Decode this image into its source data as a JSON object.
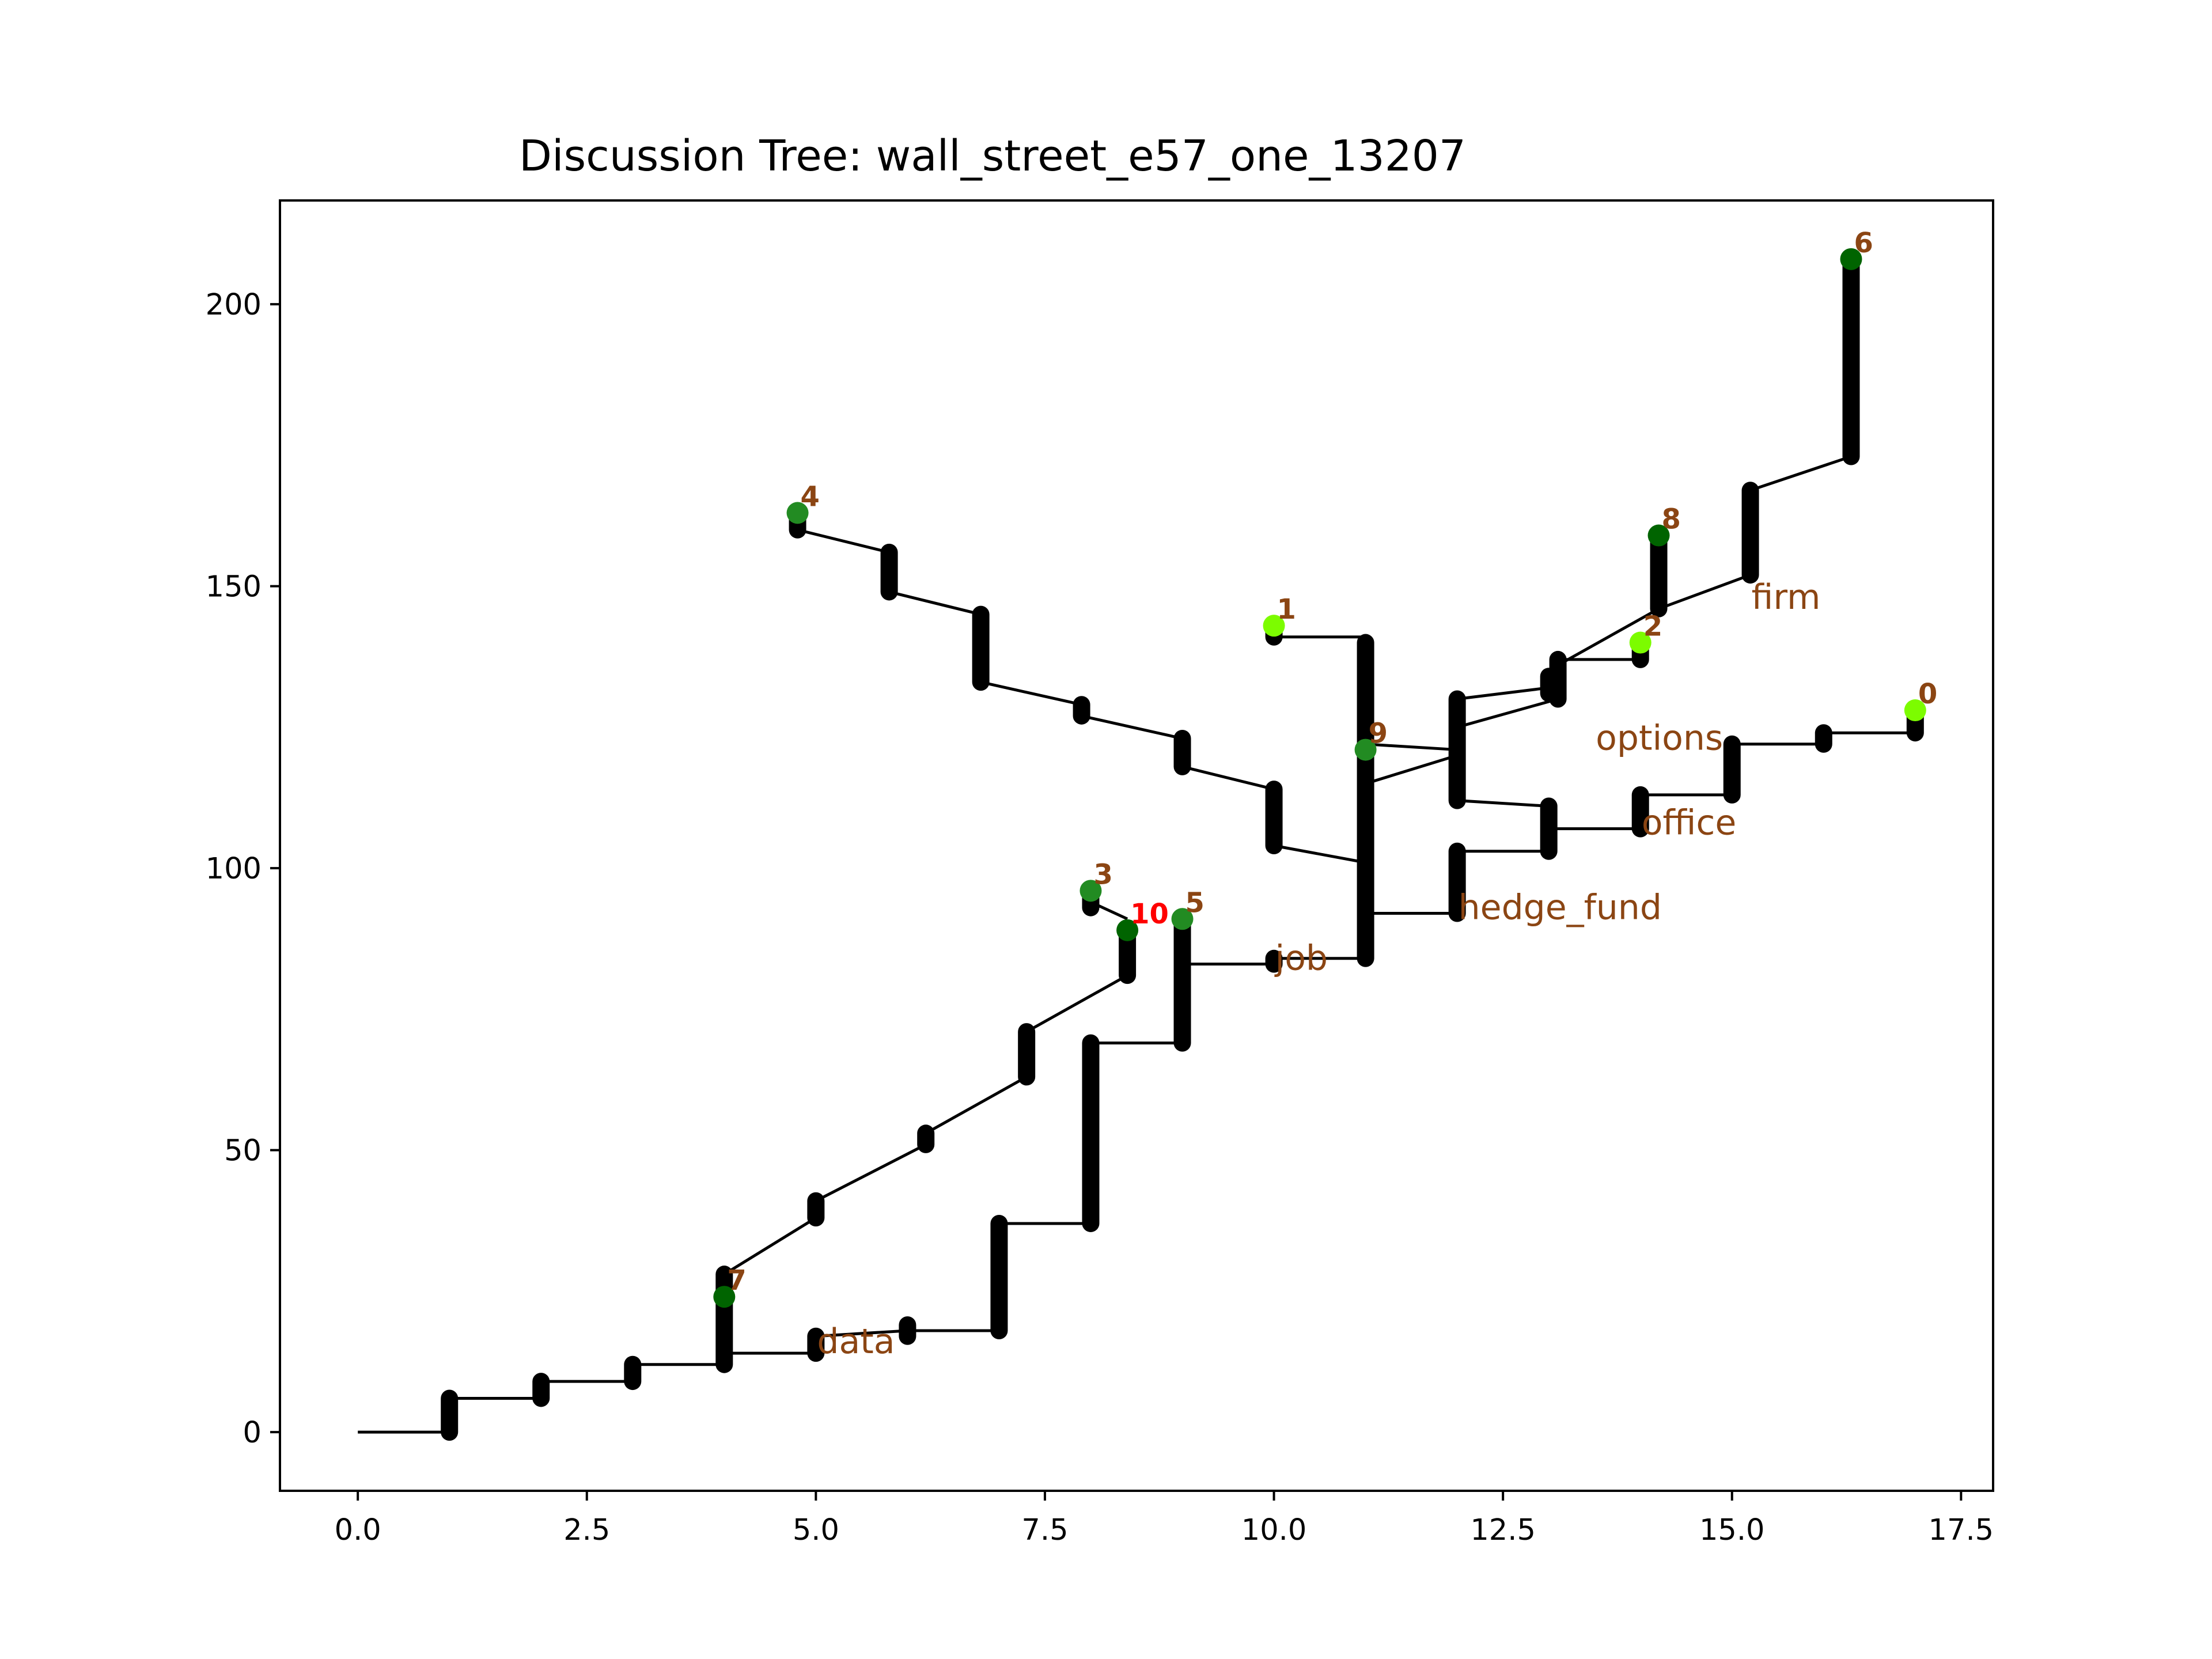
{
  "chart_data": {
    "type": "line",
    "title": "Discussion Tree: wall_street_e57_one_13207",
    "xlabel": "",
    "ylabel": "",
    "xlim": [
      -0.85,
      17.85
    ],
    "ylim": [
      -10.4,
      218.4
    ],
    "x_ticks": [
      0,
      2.5,
      5,
      7.5,
      10,
      12.5,
      15,
      17.5
    ],
    "x_tick_labels": [
      "0.0",
      "2.5",
      "5.0",
      "7.5",
      "10.0",
      "12.5",
      "15.0",
      "17.5"
    ],
    "y_ticks": [
      0,
      50,
      100,
      150,
      200
    ],
    "y_tick_labels": [
      "0",
      "50",
      "100",
      "150",
      "200"
    ],
    "grid": false,
    "colors": {
      "line": "#000000",
      "label_brown": "#8b4513",
      "label_red": "#ff0000",
      "node_lime": "#7cfc00",
      "node_green": "#228b22",
      "node_dark_green": "#006400"
    },
    "edges": [
      [
        [
          0,
          0
        ],
        [
          1,
          0
        ]
      ],
      [
        [
          1,
          6
        ],
        [
          2,
          6
        ]
      ],
      [
        [
          2,
          9
        ],
        [
          3,
          9
        ]
      ],
      [
        [
          3,
          12
        ],
        [
          4,
          12
        ]
      ],
      [
        [
          4,
          14
        ],
        [
          5,
          14
        ]
      ],
      [
        [
          5,
          17
        ],
        [
          6,
          18
        ]
      ],
      [
        [
          6,
          18
        ],
        [
          7,
          18
        ]
      ],
      [
        [
          7,
          37
        ],
        [
          8,
          37
        ]
      ],
      [
        [
          8,
          69
        ],
        [
          9,
          69
        ]
      ],
      [
        [
          9,
          83
        ],
        [
          10,
          83
        ]
      ],
      [
        [
          10,
          84
        ],
        [
          11,
          84
        ]
      ],
      [
        [
          4,
          28
        ],
        [
          5,
          38
        ]
      ],
      [
        [
          5,
          41
        ],
        [
          6.2,
          51
        ]
      ],
      [
        [
          6.2,
          53
        ],
        [
          7.3,
          63
        ]
      ],
      [
        [
          7.3,
          71
        ],
        [
          8.4,
          81
        ]
      ],
      [
        [
          8,
          94
        ],
        [
          8.4,
          91
        ]
      ],
      [
        [
          11,
          92
        ],
        [
          12,
          92
        ]
      ],
      [
        [
          12,
          103
        ],
        [
          13,
          103
        ]
      ],
      [
        [
          11,
          101
        ],
        [
          10,
          104
        ]
      ],
      [
        [
          10,
          114
        ],
        [
          9,
          118
        ]
      ],
      [
        [
          9,
          123
        ],
        [
          7.9,
          127
        ]
      ],
      [
        [
          7.9,
          129
        ],
        [
          6.8,
          133
        ]
      ],
      [
        [
          6.8,
          145
        ],
        [
          5.8,
          149
        ]
      ],
      [
        [
          5.8,
          156
        ],
        [
          4.8,
          160
        ]
      ],
      [
        [
          11,
          141
        ],
        [
          10,
          141
        ]
      ],
      [
        [
          11,
          122
        ],
        [
          12,
          121
        ]
      ],
      [
        [
          11,
          115
        ],
        [
          12,
          120
        ]
      ],
      [
        [
          12,
          112
        ],
        [
          13,
          111
        ]
      ],
      [
        [
          13,
          107
        ],
        [
          14,
          107
        ]
      ],
      [
        [
          14,
          113
        ],
        [
          15,
          113
        ]
      ],
      [
        [
          15,
          122
        ],
        [
          16,
          122
        ]
      ],
      [
        [
          16,
          124
        ],
        [
          17,
          124
        ]
      ],
      [
        [
          12,
          130
        ],
        [
          13,
          132
        ]
      ],
      [
        [
          12,
          125
        ],
        [
          13.1,
          130
        ]
      ],
      [
        [
          13.1,
          137
        ],
        [
          14,
          137
        ]
      ],
      [
        [
          13.1,
          136
        ],
        [
          14.2,
          146
        ]
      ],
      [
        [
          14.2,
          146
        ],
        [
          15.2,
          152
        ]
      ],
      [
        [
          15.2,
          167
        ],
        [
          16.3,
          173
        ]
      ]
    ],
    "stacks": [
      {
        "x": 1,
        "y0": 0,
        "y1": 6
      },
      {
        "x": 2,
        "y0": 6,
        "y1": 9
      },
      {
        "x": 3,
        "y0": 9,
        "y1": 12
      },
      {
        "x": 4,
        "y0": 12,
        "y1": 28
      },
      {
        "x": 5,
        "y0": 14,
        "y1": 17
      },
      {
        "x": 5,
        "y0": 38,
        "y1": 41
      },
      {
        "x": 6,
        "y0": 17,
        "y1": 19
      },
      {
        "x": 6.2,
        "y0": 51,
        "y1": 53
      },
      {
        "x": 7,
        "y0": 18,
        "y1": 37
      },
      {
        "x": 7.3,
        "y0": 63,
        "y1": 71
      },
      {
        "x": 8,
        "y0": 37,
        "y1": 69
      },
      {
        "x": 8,
        "y0": 93,
        "y1": 96
      },
      {
        "x": 8.4,
        "y0": 81,
        "y1": 89
      },
      {
        "x": 9,
        "y0": 69,
        "y1": 91
      },
      {
        "x": 10,
        "y0": 83,
        "y1": 84
      },
      {
        "x": 10,
        "y0": 104,
        "y1": 114
      },
      {
        "x": 10,
        "y0": 141,
        "y1": 143
      },
      {
        "x": 11,
        "y0": 84,
        "y1": 140
      },
      {
        "x": 12,
        "y0": 92,
        "y1": 103
      },
      {
        "x": 12,
        "y0": 112,
        "y1": 130
      },
      {
        "x": 13,
        "y0": 103,
        "y1": 111
      },
      {
        "x": 13,
        "y0": 131,
        "y1": 134
      },
      {
        "x": 13.1,
        "y0": 130,
        "y1": 137
      },
      {
        "x": 14,
        "y0": 107,
        "y1": 113
      },
      {
        "x": 14,
        "y0": 137,
        "y1": 140
      },
      {
        "x": 15,
        "y0": 113,
        "y1": 122
      },
      {
        "x": 16,
        "y0": 122,
        "y1": 124
      },
      {
        "x": 17,
        "y0": 124,
        "y1": 128
      },
      {
        "x": 14.2,
        "y0": 146,
        "y1": 159
      },
      {
        "x": 15.2,
        "y0": 152,
        "y1": 167
      },
      {
        "x": 16.3,
        "y0": 173,
        "y1": 208
      },
      {
        "x": 9,
        "y0": 118,
        "y1": 123
      },
      {
        "x": 7.9,
        "y0": 127,
        "y1": 129
      },
      {
        "x": 6.8,
        "y0": 133,
        "y1": 145
      },
      {
        "x": 5.8,
        "y0": 149,
        "y1": 156
      },
      {
        "x": 4.8,
        "y0": 160,
        "y1": 163
      }
    ],
    "leaves": [
      {
        "label": "0",
        "x": 17,
        "y": 128,
        "color": "#7cfc00",
        "label_color": "#8b4513"
      },
      {
        "label": "1",
        "x": 10,
        "y": 143,
        "color": "#7cfc00",
        "label_color": "#8b4513"
      },
      {
        "label": "2",
        "x": 14,
        "y": 140,
        "color": "#7cfc00",
        "label_color": "#8b4513"
      },
      {
        "label": "3",
        "x": 8,
        "y": 96,
        "color": "#228b22",
        "label_color": "#8b4513"
      },
      {
        "label": "4",
        "x": 4.8,
        "y": 163,
        "color": "#228b22",
        "label_color": "#8b4513"
      },
      {
        "label": "5",
        "x": 9,
        "y": 91,
        "color": "#228b22",
        "label_color": "#8b4513"
      },
      {
        "label": "6",
        "x": 16.3,
        "y": 208,
        "color": "#006400",
        "label_color": "#8b4513"
      },
      {
        "label": "7",
        "x": 4,
        "y": 24,
        "color": "#006400",
        "label_color": "#8b4513"
      },
      {
        "label": "8",
        "x": 14.2,
        "y": 159,
        "color": "#006400",
        "label_color": "#8b4513"
      },
      {
        "label": "9",
        "x": 11,
        "y": 121,
        "color": "#228b22",
        "label_color": "#8b4513"
      },
      {
        "label": "10",
        "x": 8.4,
        "y": 89,
        "color": "#006400",
        "label_color": "#ff0000"
      }
    ],
    "annotations": [
      {
        "text": "data",
        "x": 5.0,
        "y": 14
      },
      {
        "text": "job",
        "x": 10.0,
        "y": 82
      },
      {
        "text": "hedge_fund",
        "x": 12.0,
        "y": 91
      },
      {
        "text": "office",
        "x": 14.0,
        "y": 106
      },
      {
        "text": "options",
        "x": 13.5,
        "y": 121
      },
      {
        "text": "firm",
        "x": 15.2,
        "y": 146
      }
    ]
  }
}
